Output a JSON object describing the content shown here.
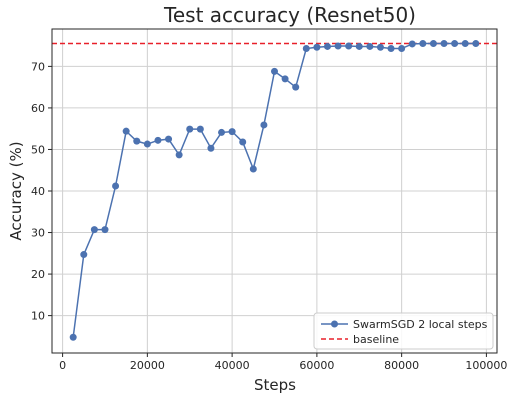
{
  "chart_data": {
    "type": "line",
    "title": "Test accuracy (Resnet50)",
    "xlabel": "Steps",
    "ylabel": "Accuracy (%)",
    "xlim": [
      -2500,
      102500
    ],
    "ylim": [
      1,
      79
    ],
    "xticks": [
      0,
      20000,
      40000,
      60000,
      80000,
      100000
    ],
    "yticks": [
      10,
      20,
      30,
      40,
      50,
      60,
      70
    ],
    "grid": true,
    "legend_position": "lower-right",
    "series": [
      {
        "name": "SwarmSGD 2 local steps",
        "color": "#4c72b0",
        "marker": "circle",
        "x": [
          2500,
          5000,
          7500,
          10000,
          12500,
          15000,
          17500,
          20000,
          22500,
          25000,
          27500,
          30000,
          32500,
          35000,
          37500,
          40000,
          42500,
          45000,
          47500,
          50000,
          52500,
          55000,
          57500,
          60000,
          62500,
          65000,
          67500,
          70000,
          72500,
          75000,
          77500,
          80000,
          82500,
          85000,
          87500,
          90000,
          92500,
          95000,
          97500
        ],
        "y": [
          4.8,
          24.7,
          30.7,
          30.7,
          41.2,
          54.4,
          52.0,
          51.3,
          52.2,
          52.5,
          48.7,
          54.9,
          54.9,
          50.3,
          54.1,
          54.3,
          51.8,
          45.3,
          55.9,
          68.8,
          67.0,
          65.0,
          74.3,
          74.6,
          74.8,
          74.9,
          74.9,
          74.8,
          74.8,
          74.6,
          74.3,
          74.3,
          75.4,
          75.5,
          75.5,
          75.5,
          75.5,
          75.5,
          75.5
        ]
      }
    ],
    "baseline": {
      "name": "baseline",
      "color": "#e8202a",
      "style": "dashed",
      "y": 75.5
    }
  }
}
